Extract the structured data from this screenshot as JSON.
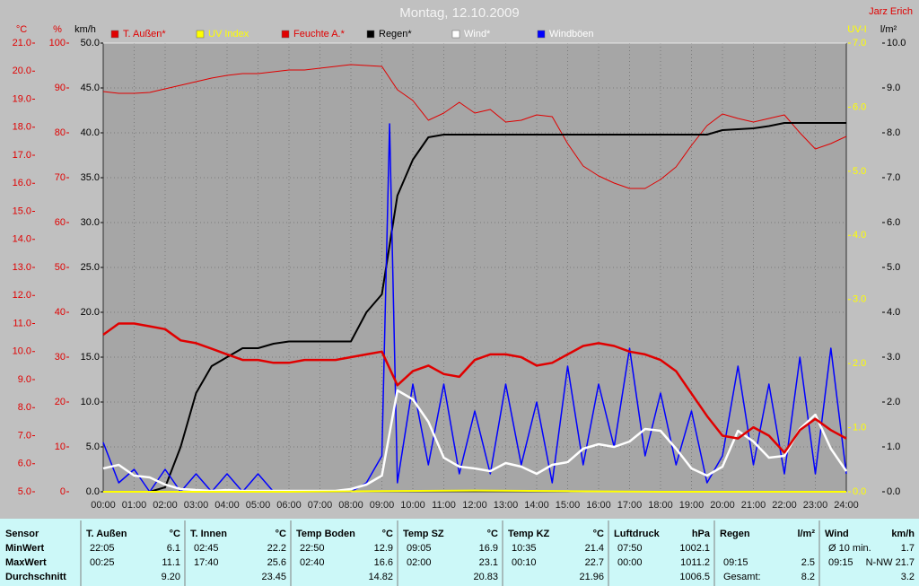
{
  "chart_data": {
    "type": "line",
    "title": "Montag, 12.10.2009",
    "author": "Jarz Erich",
    "xlim": [
      0,
      24
    ],
    "xticks": [
      {
        "value": 0,
        "label": "00:00"
      },
      {
        "value": 1,
        "label": "01:00"
      },
      {
        "value": 2,
        "label": "02:00"
      },
      {
        "value": 3,
        "label": "03:00"
      },
      {
        "value": 4,
        "label": "04:00"
      },
      {
        "value": 5,
        "label": "05:00"
      },
      {
        "value": 6,
        "label": "06:00"
      },
      {
        "value": 7,
        "label": "07:00"
      },
      {
        "value": 8,
        "label": "08:00"
      },
      {
        "value": 9,
        "label": "09:00"
      },
      {
        "value": 10,
        "label": "10:00"
      },
      {
        "value": 11,
        "label": "11:00"
      },
      {
        "value": 12,
        "label": "12:00"
      },
      {
        "value": 13,
        "label": "13:00"
      },
      {
        "value": 14,
        "label": "14:00"
      },
      {
        "value": 15,
        "label": "15:00"
      },
      {
        "value": 16,
        "label": "16:00"
      },
      {
        "value": 17,
        "label": "17:00"
      },
      {
        "value": 18,
        "label": "18:00"
      },
      {
        "value": 19,
        "label": "19:00"
      },
      {
        "value": 20,
        "label": "20:00"
      },
      {
        "value": 21,
        "label": "21:00"
      },
      {
        "value": 22,
        "label": "22:00"
      },
      {
        "value": 23,
        "label": "23:00"
      },
      {
        "value": 24,
        "label": "24:00"
      }
    ],
    "grid": true,
    "axes": [
      {
        "id": "temp",
        "unit": "°C",
        "color": "#e00000",
        "lim": [
          5,
          21
        ],
        "ticks": [
          {
            "value": 5,
            "label": "5.0"
          },
          {
            "value": 6,
            "label": "6.0"
          },
          {
            "value": 7,
            "label": "7.0"
          },
          {
            "value": 8,
            "label": "8.0"
          },
          {
            "value": 9,
            "label": "9.0"
          },
          {
            "value": 10,
            "label": "10.0"
          },
          {
            "value": 11,
            "label": "11.0"
          },
          {
            "value": 12,
            "label": "12.0"
          },
          {
            "value": 13,
            "label": "13.0"
          },
          {
            "value": 14,
            "label": "14.0"
          },
          {
            "value": 15,
            "label": "15.0"
          },
          {
            "value": 16,
            "label": "16.0"
          },
          {
            "value": 17,
            "label": "17.0"
          },
          {
            "value": 18,
            "label": "18.0"
          },
          {
            "value": 19,
            "label": "19.0"
          },
          {
            "value": 20,
            "label": "20.0"
          },
          {
            "value": 21,
            "label": "21.0"
          }
        ]
      },
      {
        "id": "hum",
        "unit": "%",
        "color": "#e00000",
        "lim": [
          0,
          100
        ],
        "ticks": [
          0,
          10,
          20,
          30,
          40,
          50,
          60,
          70,
          80,
          90,
          100
        ]
      },
      {
        "id": "wind",
        "unit": "km/h",
        "color": "#000000",
        "lim": [
          0,
          50
        ],
        "ticks": [
          {
            "value": 0,
            "label": "0.0"
          },
          {
            "value": 5,
            "label": "5.0"
          },
          {
            "value": 10,
            "label": "10.0"
          },
          {
            "value": 15,
            "label": "15.0"
          },
          {
            "value": 20,
            "label": "20.0"
          },
          {
            "value": 25,
            "label": "25.0"
          },
          {
            "value": 30,
            "label": "30.0"
          },
          {
            "value": 35,
            "label": "35.0"
          },
          {
            "value": 40,
            "label": "40.0"
          },
          {
            "value": 45,
            "label": "45.0"
          },
          {
            "value": 50,
            "label": "50.0"
          }
        ]
      },
      {
        "id": "uv",
        "unit": "UV-I",
        "color": "#ffff00",
        "lim": [
          0,
          7
        ],
        "ticks": [
          {
            "value": 0,
            "label": "0.0"
          },
          {
            "value": 1,
            "label": "1.0"
          },
          {
            "value": 2,
            "label": "2.0"
          },
          {
            "value": 3,
            "label": "3.0"
          },
          {
            "value": 4,
            "label": "4.0"
          },
          {
            "value": 5,
            "label": "5.0"
          },
          {
            "value": 6,
            "label": "6.0"
          },
          {
            "value": 7,
            "label": "7.0"
          }
        ]
      },
      {
        "id": "rain",
        "unit": "l/m²",
        "color": "#000000",
        "lim": [
          0,
          10
        ],
        "ticks": [
          {
            "value": 0,
            "label": "0.0"
          },
          {
            "value": 1,
            "label": "1.0"
          },
          {
            "value": 2,
            "label": "2.0"
          },
          {
            "value": 3,
            "label": "3.0"
          },
          {
            "value": 4,
            "label": "4.0"
          },
          {
            "value": 5,
            "label": "5.0"
          },
          {
            "value": 6,
            "label": "6.0"
          },
          {
            "value": 7,
            "label": "7.0"
          },
          {
            "value": 8,
            "label": "8.0"
          },
          {
            "value": 9,
            "label": "9.0"
          },
          {
            "value": 10,
            "label": "10.0"
          }
        ]
      }
    ],
    "series": [
      {
        "name": "T. Außen*",
        "color": "#e00000",
        "axis": "temp",
        "width": 2.5,
        "x": [
          0,
          0.5,
          1,
          1.5,
          2,
          2.5,
          3,
          3.5,
          4,
          4.5,
          5,
          5.5,
          6,
          6.5,
          7,
          7.5,
          8,
          8.5,
          9,
          9.5,
          10,
          10.5,
          11,
          11.5,
          12,
          12.5,
          13,
          13.5,
          14,
          14.5,
          15,
          15.5,
          16,
          16.5,
          17,
          17.5,
          18,
          18.5,
          19,
          19.5,
          20,
          20.5,
          21,
          21.5,
          22,
          22.5,
          23,
          23.5,
          24
        ],
        "values": [
          10.6,
          11.0,
          11.0,
          10.9,
          10.8,
          10.4,
          10.3,
          10.1,
          9.9,
          9.7,
          9.7,
          9.6,
          9.6,
          9.7,
          9.7,
          9.7,
          9.8,
          9.9,
          10.0,
          8.8,
          9.3,
          9.5,
          9.2,
          9.1,
          9.7,
          9.9,
          9.9,
          9.8,
          9.5,
          9.6,
          9.9,
          10.2,
          10.3,
          10.2,
          10.0,
          9.9,
          9.7,
          9.3,
          8.5,
          7.7,
          7.0,
          6.9,
          7.3,
          7.0,
          6.4,
          7.2,
          7.6,
          7.2,
          6.9
        ]
      },
      {
        "name": "UV Index",
        "color": "#ffff00",
        "axis": "uv",
        "width": 2,
        "x": [
          0,
          6,
          9,
          12,
          15,
          18,
          24
        ],
        "values": [
          0,
          0,
          0.01,
          0.02,
          0.01,
          0,
          0
        ]
      },
      {
        "name": "Feuchte A.*",
        "color": "#e00000",
        "axis": "hum",
        "width": 1,
        "x": [
          0,
          0.5,
          1,
          1.5,
          2,
          2.5,
          3,
          3.5,
          4,
          4.5,
          5,
          5.5,
          6,
          6.5,
          7,
          7.5,
          8,
          8.5,
          9,
          9.5,
          10,
          10.5,
          11,
          11.5,
          12,
          12.5,
          13,
          13.5,
          14,
          14.5,
          15,
          15.5,
          16,
          16.5,
          17,
          17.5,
          18,
          18.5,
          19,
          19.5,
          20,
          20.5,
          21,
          21.5,
          22,
          22.5,
          23,
          23.5,
          24
        ],
        "values": [
          89.2,
          88.8,
          88.8,
          89,
          89.8,
          90.6,
          91.4,
          92.2,
          92.8,
          93.2,
          93.2,
          93.6,
          94,
          94,
          94.4,
          94.8,
          95.2,
          95,
          94.8,
          89.6,
          87.2,
          82.8,
          84.4,
          86.8,
          84.4,
          85.2,
          82.4,
          82.8,
          84,
          83.6,
          77.6,
          72.6,
          70.4,
          68.8,
          67.6,
          67.6,
          69.6,
          72.4,
          77.2,
          81.6,
          84.2,
          83.2,
          82.4,
          83.2,
          84,
          80,
          76.4,
          77.6,
          79.2
        ]
      },
      {
        "name": "Regen*",
        "color": "#000000",
        "axis": "rain",
        "width": 2,
        "x": [
          0,
          0.5,
          1,
          1.5,
          2,
          2.5,
          3,
          3.5,
          4,
          4.5,
          5,
          5.5,
          6,
          6.5,
          7,
          7.5,
          8,
          8.5,
          9,
          9.5,
          10,
          10.5,
          11,
          11.5,
          12,
          12.5,
          13,
          13.5,
          14,
          14.5,
          15,
          15.5,
          16,
          16.5,
          17,
          17.5,
          18,
          18.5,
          19,
          19.5,
          20,
          20.5,
          21,
          21.5,
          22,
          22.5,
          23,
          23.5,
          24
        ],
        "values": [
          0,
          0,
          0,
          0,
          0.1,
          1.0,
          2.2,
          2.8,
          3.0,
          3.2,
          3.2,
          3.3,
          3.35,
          3.35,
          3.35,
          3.35,
          3.35,
          4.0,
          4.4,
          6.6,
          7.4,
          7.9,
          7.96,
          7.96,
          7.96,
          7.96,
          7.96,
          7.96,
          7.96,
          7.96,
          7.96,
          7.96,
          7.96,
          7.96,
          7.96,
          7.96,
          7.96,
          7.96,
          7.96,
          7.96,
          8.06,
          8.08,
          8.1,
          8.15,
          8.22,
          8.22,
          8.22,
          8.22,
          8.22
        ]
      },
      {
        "name": "Wind*",
        "color": "#ffffff",
        "axis": "wind",
        "width": 2.5,
        "x": [
          0,
          0.5,
          1,
          1.5,
          2,
          2.5,
          3,
          3.5,
          4,
          4.5,
          5,
          5.5,
          6,
          6.5,
          7,
          7.5,
          8,
          8.5,
          9,
          9.5,
          10,
          10.5,
          11,
          11.5,
          12,
          12.5,
          13,
          13.5,
          14,
          14.5,
          15,
          15.5,
          16,
          16.5,
          17,
          17.5,
          18,
          18.5,
          19,
          19.5,
          20,
          20.5,
          21,
          21.5,
          22,
          22.5,
          23,
          23.5,
          24
        ],
        "values": [
          2.6,
          3.0,
          1.8,
          1.6,
          0.8,
          0.3,
          0.2,
          0.1,
          0.2,
          0.1,
          0.1,
          0.1,
          0.1,
          0.1,
          0.1,
          0.1,
          0.3,
          0.8,
          1.8,
          11.3,
          10.3,
          7.8,
          3.8,
          2.8,
          2.6,
          2.3,
          3.2,
          2.8,
          2.0,
          3.0,
          3.3,
          4.8,
          5.3,
          5.0,
          5.6,
          7.0,
          6.8,
          4.8,
          2.6,
          1.8,
          2.8,
          6.8,
          5.6,
          3.8,
          4.0,
          7.0,
          8.6,
          4.8,
          2.3
        ]
      },
      {
        "name": "Windböen",
        "color": "#0000ff",
        "axis": "wind",
        "width": 1.5,
        "x": [
          0,
          0.5,
          1,
          1.5,
          2,
          2.5,
          3,
          3.5,
          4,
          4.5,
          5,
          5.5,
          6,
          6.5,
          7,
          7.5,
          8,
          8.5,
          9,
          9.25,
          9.5,
          10,
          10.5,
          11,
          11.5,
          12,
          12.5,
          13,
          13.5,
          14,
          14.5,
          15,
          15.5,
          16,
          16.5,
          17,
          17.5,
          18,
          18.5,
          19,
          19.5,
          20,
          20.5,
          21,
          21.5,
          22,
          22.5,
          23,
          23.5,
          24
        ],
        "values": [
          5.5,
          1,
          2.5,
          0,
          2.5,
          0,
          2,
          0,
          2,
          0,
          2,
          0,
          0,
          0,
          0,
          0,
          0,
          1,
          4,
          41,
          1,
          12,
          3,
          12,
          2,
          9,
          2,
          12,
          3,
          10,
          1,
          14,
          3,
          12,
          5,
          16,
          4,
          11,
          3,
          9,
          1,
          4,
          14,
          3,
          12,
          2,
          15,
          2,
          16,
          2
        ]
      }
    ]
  },
  "table": {
    "header": [
      [
        "Sensor"
      ],
      [
        "T. Außen",
        "°C"
      ],
      [
        "T. Innen",
        "°C"
      ],
      [
        "Temp Boden",
        "°C"
      ],
      [
        "Temp SZ",
        "°C"
      ],
      [
        "Temp KZ",
        "°C"
      ],
      [
        "Luftdruck",
        "hPa"
      ],
      [
        "Regen",
        "l/m²"
      ],
      [
        "Wind",
        "km/h"
      ]
    ],
    "rows": [
      {
        "label": "MinWert",
        "cells": [
          [
            "22:05",
            "6.1"
          ],
          [
            "02:45",
            "22.2"
          ],
          [
            "22:50",
            "12.9"
          ],
          [
            "09:05",
            "16.9"
          ],
          [
            "10:35",
            "21.4"
          ],
          [
            "07:50",
            "1002.1"
          ],
          [],
          [
            "Ø 10 min.",
            "1.7"
          ]
        ]
      },
      {
        "label": "MaxWert",
        "cells": [
          [
            "00:25",
            "11.1"
          ],
          [
            "17:40",
            "25.6"
          ],
          [
            "02:40",
            "16.6"
          ],
          [
            "02:00",
            "23.1"
          ],
          [
            "00:10",
            "22.7"
          ],
          [
            "00:00",
            "1011.2"
          ],
          [
            "09:15",
            "2.5"
          ],
          [
            "09:15",
            "N-NW 21.7"
          ]
        ]
      },
      {
        "label": "Durchschnitt",
        "cells": [
          [
            "9.20"
          ],
          [
            "23.45"
          ],
          [
            "14.82"
          ],
          [
            "20.83"
          ],
          [
            "21.96"
          ],
          [
            "1006.5"
          ],
          [
            "Gesamt:",
            "8.2"
          ],
          [
            "3.2"
          ]
        ]
      }
    ]
  }
}
